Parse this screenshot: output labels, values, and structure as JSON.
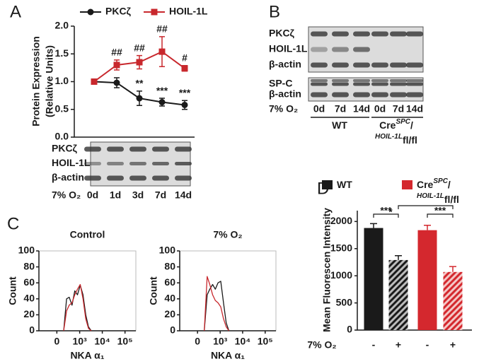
{
  "chart_data": [
    {
      "type": "line",
      "panel": "A",
      "y_label": [
        "Protein Expression",
        "(Relative Units)"
      ],
      "categories": [
        "0d",
        "1d",
        "3d",
        "7d",
        "14d"
      ],
      "ylim": [
        0,
        2.0
      ],
      "yticks": [
        {
          "value": 0,
          "label": "0.0"
        },
        {
          "value": 0.5,
          "label": "0.5"
        },
        {
          "value": 1,
          "label": "1.0"
        },
        {
          "value": 1.5,
          "label": "1.5"
        },
        {
          "value": 2,
          "label": "2.0"
        }
      ],
      "legend": "top",
      "series": [
        {
          "name": "PKCζ",
          "color": "#1a1a1a",
          "marker": "circle",
          "values": [
            1.0,
            0.98,
            0.7,
            0.63,
            0.58
          ],
          "errors": [
            0.02,
            0.09,
            0.13,
            0.07,
            0.08
          ],
          "value_annotations": [
            null,
            null,
            "**",
            "***",
            "***"
          ]
        },
        {
          "name": "HOIL-1L",
          "color": "#c8282d",
          "marker": "square",
          "values": [
            1.0,
            1.3,
            1.35,
            1.54,
            1.24
          ],
          "errors": [
            0.02,
            0.09,
            0.12,
            0.27,
            0.05
          ],
          "value_annotations": [
            null,
            "##",
            "##",
            "##",
            "#"
          ]
        }
      ],
      "blot": {
        "rows": [
          "PKCζ",
          "HOIL-1L",
          "β-actin"
        ],
        "condition_label": "7% O₂"
      }
    },
    {
      "type": "line",
      "panel": "C",
      "title": "Control",
      "y_label": "Count",
      "x_label": "NKA α₁",
      "xscale": "asinh",
      "xlim": [
        -600,
        300000
      ],
      "xticks": [
        0,
        {
          "value": 1000,
          "label": "10³"
        },
        {
          "value": 10000,
          "label": "10⁴"
        },
        {
          "value": 100000,
          "label": "10⁵"
        }
      ],
      "ylim": [
        0,
        100
      ],
      "yticks": [
        0,
        20,
        40,
        60,
        80,
        100
      ],
      "x": [
        149,
        230,
        322,
        444,
        600,
        796,
        1060,
        1410,
        1870,
        2460,
        3280
      ],
      "series": [
        {
          "color": "#1a1a1a",
          "values": [
            0,
            40,
            42,
            32,
            50,
            45,
            57,
            45,
            20,
            5,
            0
          ]
        },
        {
          "color": "#c8282d",
          "values": [
            0,
            25,
            32,
            35,
            45,
            52,
            58,
            40,
            15,
            3,
            0
          ]
        }
      ]
    },
    {
      "type": "line",
      "title": "7% O₂",
      "y_label": "Count",
      "x_label": "NKA α₁",
      "xscale": "asinh",
      "xlim": [
        -600,
        300000
      ],
      "xticks": [
        0,
        {
          "value": 1000,
          "label": "10³"
        },
        {
          "value": 10000,
          "label": "10⁴"
        },
        {
          "value": 100000,
          "label": "10⁵"
        }
      ],
      "ylim": [
        0,
        100
      ],
      "yticks": [
        0,
        20,
        40,
        60,
        80,
        100
      ],
      "x": [
        149,
        230,
        322,
        444,
        600,
        796,
        1060,
        1410,
        1870,
        2460
      ],
      "series": [
        {
          "color": "#1a1a1a",
          "values": [
            0,
            45,
            52,
            58,
            52,
            60,
            62,
            35,
            10,
            0
          ]
        },
        {
          "color": "#c8282d",
          "values": [
            0,
            68,
            58,
            45,
            38,
            35,
            30,
            15,
            5,
            0
          ]
        }
      ]
    },
    {
      "type": "bar",
      "panel": "D",
      "y_label": "Mean Fluorescen Intensity",
      "x_row_label": "7% O₂",
      "categories": [
        "-",
        "+",
        "-",
        "+"
      ],
      "values": [
        1880,
        1290,
        1840,
        1070
      ],
      "errors": [
        80,
        80,
        90,
        100
      ],
      "colors": [
        "#1a1a1a",
        "#1a1a1a",
        "#d4282e",
        "#d4282e"
      ],
      "hatched": [
        false,
        true,
        false,
        true
      ],
      "ylim": [
        0,
        2200
      ],
      "yticks": [
        0,
        500,
        1000,
        1500,
        2000
      ],
      "legend": [
        {
          "label": [
            "WT"
          ],
          "color": "#1a1a1a"
        },
        {
          "label": [
            "Cre",
            "SPC",
            "/",
            "HOIL-1L",
            "fl/fl"
          ],
          "color": "#d4282e"
        }
      ],
      "annotations": [
        {
          "text": "***",
          "between": [
            0,
            1
          ]
        },
        {
          "text": "***",
          "between": [
            2,
            3
          ]
        },
        {
          "text": "*",
          "between": [
            1,
            3
          ]
        }
      ]
    }
  ],
  "blot_panel": {
    "panel": "B",
    "rows": [
      "PKCζ",
      "HOIL-1L",
      "β-actin",
      "SP-C",
      "β-actin"
    ],
    "condition_label": "7% O₂",
    "lanes": [
      "0d",
      "7d",
      "14d",
      "0d",
      "7d",
      "14d"
    ],
    "groups": [
      {
        "label": [
          "WT"
        ]
      },
      {
        "label": [
          "Cre",
          "SPC",
          "/",
          "HOIL-1L",
          "fl/fl"
        ]
      }
    ]
  }
}
